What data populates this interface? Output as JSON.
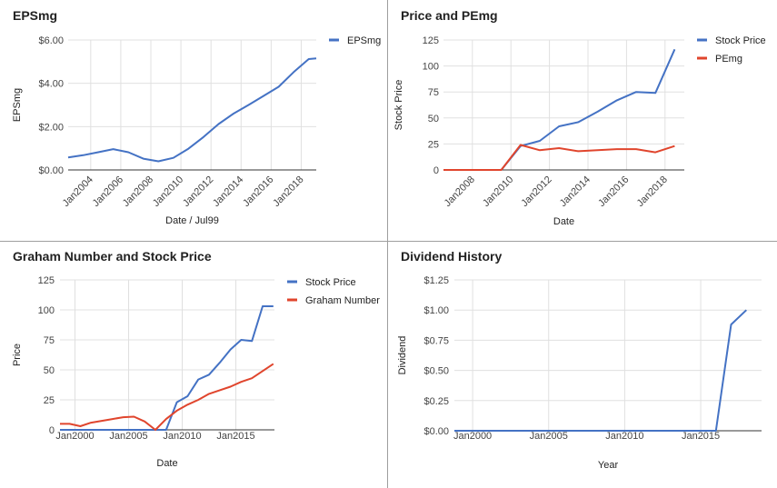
{
  "chart_data": [
    {
      "type": "line",
      "title": "EPSmg",
      "xlabel": "Date / Jul99",
      "ylabel": "EPSmg",
      "xlim": [
        2002.5,
        2019.0
      ],
      "ylim": [
        0,
        6
      ],
      "yticks": [
        0,
        2,
        4,
        6
      ],
      "ytick_labels": [
        "$0.00",
        "$2.00",
        "$4.00",
        "$6.00"
      ],
      "xticks": [
        2004,
        2006,
        2008,
        2010,
        2012,
        2014,
        2016,
        2018
      ],
      "xtick_labels": [
        "Jan2004",
        "Jan2006",
        "Jan2008",
        "Jan2010",
        "Jan2012",
        "Jan2014",
        "Jan2016",
        "Jan2018"
      ],
      "xtick_rotate": true,
      "grid": true,
      "legend": "right",
      "series": [
        {
          "name": "EPSmg",
          "color": "#4472c4",
          "x": [
            2002.5,
            2003.5,
            2004.5,
            2005.5,
            2006.5,
            2007.5,
            2008.5,
            2009.5,
            2010.5,
            2011.5,
            2012.5,
            2013.5,
            2014.5,
            2015.5,
            2016.5,
            2017.5,
            2018.5,
            2019.0
          ],
          "y": [
            0.58,
            0.68,
            0.82,
            0.96,
            0.82,
            0.52,
            0.4,
            0.56,
            0.98,
            1.52,
            2.12,
            2.6,
            3.0,
            3.42,
            3.84,
            4.52,
            5.12,
            5.15
          ]
        }
      ]
    },
    {
      "type": "line",
      "title": "Price and PEmg",
      "xlabel": "Date",
      "ylabel": "Stock Price",
      "xlim": [
        2006.5,
        2019.0
      ],
      "ylim": [
        0,
        125
      ],
      "yticks": [
        0,
        25,
        50,
        75,
        100,
        125
      ],
      "ytick_labels": [
        "0",
        "25",
        "50",
        "75",
        "100",
        "125"
      ],
      "xticks": [
        2008,
        2010,
        2012,
        2014,
        2016,
        2018
      ],
      "xtick_labels": [
        "Jan2008",
        "Jan2010",
        "Jan2012",
        "Jan2014",
        "Jan2016",
        "Jan2018"
      ],
      "xtick_rotate": true,
      "grid": true,
      "legend": "right",
      "series": [
        {
          "name": "Stock Price",
          "color": "#4472c4",
          "x": [
            2006.5,
            2009.5,
            2010.5,
            2011.5,
            2012.5,
            2013.5,
            2014.5,
            2015.5,
            2016.5,
            2017.5,
            2018.5
          ],
          "y": [
            0,
            0,
            23,
            28,
            42,
            46,
            56,
            67,
            75,
            74,
            116
          ]
        },
        {
          "name": "PEmg",
          "color": "#e0452d",
          "x": [
            2006.5,
            2009.5,
            2010.5,
            2011.5,
            2012.5,
            2013.5,
            2014.5,
            2015.5,
            2016.5,
            2017.5,
            2018.5
          ],
          "y": [
            0,
            0,
            24,
            19,
            21,
            18,
            19,
            20,
            20,
            17,
            23
          ]
        }
      ]
    },
    {
      "type": "line",
      "title": "Graham Number and Stock Price",
      "xlabel": "Date",
      "ylabel": "Price",
      "xlim": [
        1998.6,
        2018.6
      ],
      "ylim": [
        0,
        125
      ],
      "yticks": [
        0,
        25,
        50,
        75,
        100,
        125
      ],
      "ytick_labels": [
        "0",
        "25",
        "50",
        "75",
        "100",
        "125"
      ],
      "xticks": [
        2000,
        2005,
        2010,
        2015
      ],
      "xtick_labels": [
        "Jan2000",
        "Jan2005",
        "Jan2010",
        "Jan2015"
      ],
      "xtick_rotate": false,
      "grid": true,
      "legend": "right",
      "series": [
        {
          "name": "Stock Price",
          "color": "#4472c4",
          "x": [
            1998.6,
            2008.5,
            2009.5,
            2010.5,
            2011.5,
            2012.5,
            2013.5,
            2014.5,
            2015.5,
            2016.5,
            2017.5,
            2018.5
          ],
          "y": [
            0,
            0,
            23,
            28,
            42,
            46,
            56,
            67,
            75,
            74,
            103,
            103
          ]
        },
        {
          "name": "Graham Number",
          "color": "#e0452d",
          "x": [
            1998.6,
            1999.5,
            2000.5,
            2001.5,
            2002.5,
            2003.5,
            2004.5,
            2005.5,
            2006.5,
            2007.5,
            2008.5,
            2009.5,
            2010.5,
            2011.5,
            2012.5,
            2013.5,
            2014.5,
            2015.5,
            2016.5,
            2017.5,
            2018.5
          ],
          "y": [
            5,
            5,
            3,
            6,
            7.5,
            9,
            10.5,
            11,
            7,
            0,
            9,
            16,
            21,
            25,
            30,
            33,
            36,
            40,
            43,
            49,
            55
          ]
        }
      ]
    },
    {
      "type": "line",
      "title": "Dividend History",
      "xlabel": "Year",
      "ylabel": "Dividend",
      "xlim": [
        1998.8,
        2019.0
      ],
      "ylim": [
        0,
        1.25
      ],
      "yticks": [
        0,
        0.25,
        0.5,
        0.75,
        1.0,
        1.25
      ],
      "ytick_labels": [
        "$0.00",
        "$0.25",
        "$0.50",
        "$0.75",
        "$1.00",
        "$1.25"
      ],
      "xticks": [
        2000,
        2005,
        2010,
        2015
      ],
      "xtick_labels": [
        "Jan2000",
        "Jan2005",
        "Jan2010",
        "Jan2015"
      ],
      "xtick_rotate": false,
      "grid": true,
      "legend": "none",
      "series": [
        {
          "color": "#4472c4",
          "x": [
            1998.8,
            2016.0,
            2017.0,
            2018.0
          ],
          "y": [
            0,
            0,
            0.88,
            1.0
          ]
        }
      ]
    }
  ]
}
